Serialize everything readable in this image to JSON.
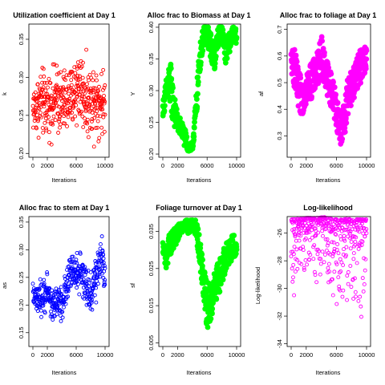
{
  "chart_data": [
    {
      "type": "scatter",
      "title": "Utilization coefficient at Day 1",
      "xlabel": "Iterations",
      "ylabel": "k",
      "xlim": [
        0,
        10000
      ],
      "ylim": [
        0.195,
        0.37
      ],
      "xticks": [
        0,
        2000,
        6000,
        10000
      ],
      "yticks": [
        0.2,
        0.25,
        0.3,
        0.35
      ],
      "ytick_labels": [
        "0.20",
        "0.25",
        "0.30",
        "0.35"
      ],
      "color": "#ff0000",
      "style": "points",
      "trace": {
        "x": [
          0,
          500,
          1000,
          1500,
          2000,
          2500,
          3000,
          3500,
          4000,
          4500,
          5000,
          5500,
          6000,
          6500,
          7000,
          7500,
          8000,
          8500,
          9000,
          9500,
          10000
        ],
        "center": [
          0.255,
          0.26,
          0.262,
          0.258,
          0.26,
          0.265,
          0.26,
          0.258,
          0.262,
          0.262,
          0.26,
          0.265,
          0.265,
          0.27,
          0.262,
          0.262,
          0.26,
          0.265,
          0.262,
          0.262,
          0.26
        ],
        "low": [
          0.215,
          0.205,
          0.21,
          0.2,
          0.21,
          0.205,
          0.21,
          0.205,
          0.205,
          0.205,
          0.21,
          0.215,
          0.21,
          0.215,
          0.21,
          0.205,
          0.205,
          0.2,
          0.21,
          0.205,
          0.21
        ],
        "high": [
          0.3,
          0.32,
          0.325,
          0.33,
          0.32,
          0.325,
          0.33,
          0.34,
          0.325,
          0.33,
          0.335,
          0.33,
          0.365,
          0.36,
          0.35,
          0.335,
          0.33,
          0.355,
          0.33,
          0.33,
          0.32
        ]
      }
    },
    {
      "type": "scatter",
      "title": "Alloc frac to Biomass at Day 1",
      "xlabel": "Iterations",
      "ylabel": "Y",
      "xlim": [
        0,
        10000
      ],
      "ylim": [
        0.195,
        0.405
      ],
      "xticks": [
        0,
        2000,
        6000,
        10000
      ],
      "yticks": [
        0.2,
        0.25,
        0.3,
        0.35,
        0.4
      ],
      "ytick_labels": [
        "0.20",
        "0.25",
        "0.30",
        "0.35",
        "0.40"
      ],
      "color": "#00ff00",
      "style": "band",
      "trace": {
        "x": [
          0,
          500,
          1000,
          1500,
          2000,
          2500,
          3000,
          3500,
          4000,
          4500,
          5000,
          5500,
          6000,
          6500,
          7000,
          7500,
          8000,
          8500,
          9000,
          9500,
          10000
        ],
        "center": [
          0.27,
          0.3,
          0.31,
          0.27,
          0.25,
          0.24,
          0.225,
          0.21,
          0.21,
          0.27,
          0.35,
          0.385,
          0.39,
          0.37,
          0.35,
          0.385,
          0.395,
          0.36,
          0.375,
          0.39,
          0.385
        ],
        "low": [
          0.26,
          0.27,
          0.25,
          0.24,
          0.23,
          0.22,
          0.205,
          0.2,
          0.2,
          0.24,
          0.32,
          0.355,
          0.355,
          0.345,
          0.33,
          0.35,
          0.365,
          0.34,
          0.35,
          0.37,
          0.37
        ],
        "high": [
          0.29,
          0.33,
          0.36,
          0.31,
          0.27,
          0.26,
          0.245,
          0.22,
          0.22,
          0.3,
          0.38,
          0.4,
          0.4,
          0.4,
          0.38,
          0.4,
          0.4,
          0.385,
          0.395,
          0.4,
          0.4
        ]
      }
    },
    {
      "type": "scatter",
      "title": "Alloc frac to foliage at Day 1",
      "xlabel": "Iterations",
      "ylabel": "af",
      "xlim": [
        0,
        10000
      ],
      "ylim": [
        0.22,
        0.72
      ],
      "xticks": [
        0,
        2000,
        6000,
        10000
      ],
      "yticks": [
        0.3,
        0.4,
        0.5,
        0.6,
        0.7
      ],
      "ytick_labels": [
        "0.3",
        "0.4",
        "0.5",
        "0.6",
        "0.7"
      ],
      "color": "#ff00ff",
      "style": "band",
      "trace": {
        "x": [
          0,
          500,
          1000,
          1500,
          2000,
          2500,
          3000,
          3500,
          4000,
          4500,
          5000,
          5500,
          6000,
          6500,
          7000,
          7500,
          8000,
          8500,
          9000,
          9500,
          10000
        ],
        "center": [
          0.58,
          0.55,
          0.45,
          0.45,
          0.48,
          0.5,
          0.52,
          0.55,
          0.6,
          0.55,
          0.5,
          0.45,
          0.4,
          0.33,
          0.35,
          0.45,
          0.48,
          0.52,
          0.55,
          0.58,
          0.6
        ],
        "low": [
          0.52,
          0.45,
          0.36,
          0.38,
          0.4,
          0.42,
          0.44,
          0.46,
          0.48,
          0.46,
          0.42,
          0.36,
          0.32,
          0.24,
          0.28,
          0.38,
          0.42,
          0.45,
          0.48,
          0.5,
          0.54
        ],
        "high": [
          0.64,
          0.66,
          0.6,
          0.56,
          0.58,
          0.6,
          0.62,
          0.64,
          0.7,
          0.65,
          0.6,
          0.55,
          0.5,
          0.42,
          0.45,
          0.58,
          0.6,
          0.62,
          0.64,
          0.69,
          0.66
        ]
      }
    },
    {
      "type": "scatter",
      "title": "Alloc frac to stem at Day 1",
      "xlabel": "Iterations",
      "ylabel": "as",
      "xlim": [
        0,
        10000
      ],
      "ylim": [
        0.125,
        0.36
      ],
      "xticks": [
        0,
        2000,
        6000,
        10000
      ],
      "yticks": [
        0.15,
        0.2,
        0.25,
        0.3,
        0.35
      ],
      "ytick_labels": [
        "0.15",
        "0.20",
        "0.25",
        "0.30",
        "0.35"
      ],
      "color": "#0000ff",
      "style": "points",
      "trace": {
        "x": [
          0,
          500,
          1000,
          1500,
          2000,
          2500,
          3000,
          3500,
          4000,
          4500,
          5000,
          5500,
          6000,
          6500,
          7000,
          7500,
          8000,
          8500,
          9000,
          9500,
          10000
        ],
        "center": [
          0.22,
          0.21,
          0.21,
          0.22,
          0.23,
          0.2,
          0.2,
          0.21,
          0.21,
          0.22,
          0.25,
          0.26,
          0.27,
          0.27,
          0.24,
          0.23,
          0.22,
          0.24,
          0.25,
          0.28,
          0.25
        ],
        "low": [
          0.19,
          0.17,
          0.165,
          0.17,
          0.19,
          0.16,
          0.16,
          0.17,
          0.155,
          0.18,
          0.2,
          0.21,
          0.21,
          0.2,
          0.2,
          0.18,
          0.15,
          0.2,
          0.2,
          0.22,
          0.21
        ],
        "high": [
          0.25,
          0.245,
          0.25,
          0.26,
          0.27,
          0.245,
          0.24,
          0.25,
          0.25,
          0.27,
          0.3,
          0.31,
          0.3,
          0.32,
          0.29,
          0.27,
          0.29,
          0.29,
          0.31,
          0.35,
          0.32
        ]
      }
    },
    {
      "type": "scatter",
      "title": "Foliage turnover at Day 1",
      "xlabel": "Iterations",
      "ylabel": "sf",
      "xlim": [
        0,
        10000
      ],
      "ylim": [
        0.004,
        0.039
      ],
      "xticks": [
        0,
        2000,
        6000,
        10000
      ],
      "yticks": [
        0.005,
        0.015,
        0.025,
        0.035
      ],
      "ytick_labels": [
        "0.005",
        "0.015",
        "0.025",
        "0.035"
      ],
      "color": "#00ff00",
      "style": "band",
      "trace": {
        "x": [
          0,
          500,
          1000,
          1500,
          2000,
          2500,
          3000,
          3500,
          4000,
          4500,
          5000,
          5500,
          6000,
          6500,
          7000,
          7500,
          8000,
          8500,
          9000,
          9500,
          10000
        ],
        "center": [
          0.03,
          0.028,
          0.032,
          0.033,
          0.034,
          0.036,
          0.037,
          0.036,
          0.037,
          0.036,
          0.03,
          0.022,
          0.015,
          0.016,
          0.02,
          0.022,
          0.025,
          0.028,
          0.03,
          0.031,
          0.031
        ],
        "low": [
          0.027,
          0.025,
          0.027,
          0.029,
          0.03,
          0.033,
          0.034,
          0.032,
          0.034,
          0.032,
          0.024,
          0.016,
          0.005,
          0.009,
          0.014,
          0.015,
          0.02,
          0.023,
          0.025,
          0.026,
          0.028
        ],
        "high": [
          0.034,
          0.033,
          0.036,
          0.036,
          0.037,
          0.038,
          0.038,
          0.038,
          0.038,
          0.038,
          0.035,
          0.027,
          0.022,
          0.022,
          0.025,
          0.029,
          0.031,
          0.034,
          0.035,
          0.035,
          0.034
        ]
      }
    },
    {
      "type": "scatter",
      "title": "Log-likelihood",
      "xlabel": "Iterations",
      "ylabel": "Log-likelihood",
      "xlim": [
        0,
        10000
      ],
      "ylim": [
        -34.2,
        -24.8
      ],
      "xticks": [
        0,
        2000,
        6000,
        10000
      ],
      "yticks": [
        -34,
        -32,
        -30,
        -28,
        -26
      ],
      "ytick_labels": [
        "-34",
        "-32",
        "-30",
        "-28",
        "-26"
      ],
      "color": "#ff00ff",
      "style": "loglik",
      "trace": {
        "x": [
          0,
          500,
          1000,
          1500,
          2000,
          2500,
          3000,
          3500,
          4000,
          4500,
          5000,
          5500,
          6000,
          6500,
          7000,
          7500,
          8000,
          8500,
          9000,
          9500,
          10000
        ],
        "center": [
          -25.6,
          -25.5,
          -25.5,
          -25.5,
          -25.5,
          -25.4,
          -25.4,
          -25.4,
          -25.4,
          -25.3,
          -25.5,
          -25.6,
          -25.8,
          -25.7,
          -25.7,
          -25.6,
          -25.6,
          -25.7,
          -25.6,
          -25.7,
          -25.6
        ],
        "low": [
          -28.5,
          -31.5,
          -30.5,
          -28.5,
          -29,
          -28.5,
          -29.2,
          -31,
          -29,
          -30.5,
          -29.5,
          -30.5,
          -32.3,
          -32,
          -30.5,
          -31.5,
          -30,
          -31.5,
          -33.5,
          -31.2,
          -29
        ],
        "high": [
          -25.0,
          -25.0,
          -24.95,
          -24.95,
          -24.9,
          -24.9,
          -24.9,
          -24.9,
          -24.85,
          -24.85,
          -24.9,
          -25.0,
          -25.0,
          -25.0,
          -25.0,
          -24.95,
          -25.0,
          -25.0,
          -25.0,
          -25.0,
          -25.0
        ]
      }
    }
  ]
}
